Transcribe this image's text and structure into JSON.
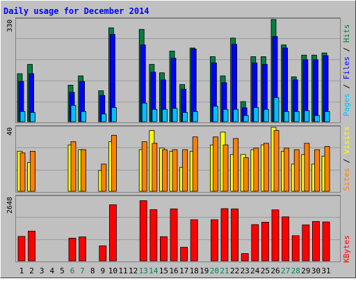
{
  "chart_data": [
    {
      "type": "bar",
      "title": "Daily usage for December 2014",
      "ymax_label": "330",
      "ylim": [
        0,
        330
      ],
      "categories": [
        "1",
        "2",
        "3",
        "4",
        "5",
        "6",
        "7",
        "8",
        "9",
        "10",
        "11",
        "12",
        "13",
        "14",
        "15",
        "16",
        "17",
        "18",
        "19",
        "20",
        "21",
        "22",
        "23",
        "24",
        "25",
        "26",
        "27",
        "28",
        "29",
        "30",
        "31"
      ],
      "weekend_days": [
        "6",
        "7",
        "13",
        "14",
        "20",
        "21",
        "27",
        "28"
      ],
      "series": [
        {
          "name": "Pages",
          "label": "Pages",
          "color": "#00C0FF",
          "values": [
            33,
            30,
            0,
            0,
            0,
            53,
            33,
            0,
            25,
            46,
            0,
            0,
            60,
            40,
            40,
            43,
            30,
            33,
            0,
            50,
            40,
            40,
            20,
            46,
            40,
            78,
            33,
            33,
            36,
            20,
            33
          ]
        },
        {
          "name": "Files",
          "label": "Files",
          "color": "#0000FF",
          "values": [
            130,
            155,
            0,
            0,
            0,
            95,
            130,
            0,
            85,
            282,
            0,
            0,
            248,
            160,
            135,
            205,
            105,
            235,
            0,
            190,
            126,
            250,
            45,
            190,
            185,
            275,
            238,
            135,
            200,
            200,
            213
          ]
        },
        {
          "name": "Hits",
          "label": "Hits",
          "color": "#008040",
          "values": [
            155,
            185,
            0,
            0,
            0,
            118,
            148,
            0,
            100,
            303,
            0,
            0,
            298,
            185,
            158,
            228,
            120,
            238,
            0,
            210,
            148,
            270,
            65,
            210,
            210,
            330,
            248,
            145,
            215,
            215,
            222
          ]
        }
      ]
    },
    {
      "type": "bar",
      "ymax_label": "40",
      "ylim": [
        0,
        40
      ],
      "categories": [
        "1",
        "2",
        "3",
        "4",
        "5",
        "6",
        "7",
        "8",
        "9",
        "10",
        "11",
        "12",
        "13",
        "14",
        "15",
        "16",
        "17",
        "18",
        "19",
        "20",
        "21",
        "22",
        "23",
        "24",
        "25",
        "26",
        "27",
        "28",
        "29",
        "30",
        "31"
      ],
      "series": [
        {
          "name": "Visits",
          "label": "Visits",
          "color": "#FFFF00",
          "values": [
            25,
            18,
            0,
            0,
            0,
            29,
            26,
            0,
            13,
            31,
            0,
            0,
            26,
            38,
            27,
            25,
            15,
            25,
            0,
            29,
            37,
            23,
            23,
            26,
            29,
            40,
            25,
            17,
            23,
            17,
            22
          ]
        },
        {
          "name": "Sites",
          "label": "Sites",
          "color": "#FF8000",
          "values": [
            24,
            25,
            0,
            0,
            0,
            31,
            26,
            0,
            17,
            35,
            0,
            0,
            31,
            30,
            26,
            26,
            26,
            34,
            0,
            34,
            29,
            33,
            21,
            27,
            30,
            38,
            27,
            26,
            30,
            26,
            28
          ]
        }
      ]
    },
    {
      "type": "bar",
      "ymax_label": "2648",
      "ylim": [
        0,
        2648
      ],
      "categories": [
        "1",
        "2",
        "3",
        "4",
        "5",
        "6",
        "7",
        "8",
        "9",
        "10",
        "11",
        "12",
        "13",
        "14",
        "15",
        "16",
        "17",
        "18",
        "19",
        "20",
        "21",
        "22",
        "23",
        "24",
        "25",
        "26",
        "27",
        "28",
        "29",
        "30",
        "31"
      ],
      "series": [
        {
          "name": "KBytes",
          "label": "KBytes",
          "color": "#FF0000",
          "values": [
            1010,
            1230,
            0,
            0,
            0,
            940,
            990,
            0,
            620,
            2320,
            0,
            0,
            2490,
            2120,
            1000,
            2150,
            560,
            1700,
            0,
            1700,
            2160,
            2150,
            300,
            1500,
            1600,
            2110,
            1820,
            1040,
            1490,
            1630,
            1610
          ]
        }
      ]
    }
  ]
}
